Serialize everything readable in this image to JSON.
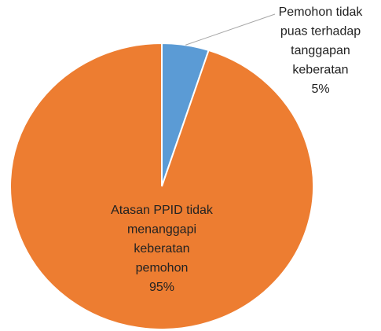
{
  "chart_data": {
    "type": "pie",
    "categories": [
      "Pemohon tidak\npuas terhadap\ntanggapan\nkeberatan",
      "Atasan PPID tidak\nmenanggapi\nkeberatan\npemohon"
    ],
    "values": [
      5,
      95
    ],
    "value_labels": [
      "5%",
      "95%"
    ],
    "colors": [
      "#5b9bd5",
      "#ed7d31"
    ]
  }
}
